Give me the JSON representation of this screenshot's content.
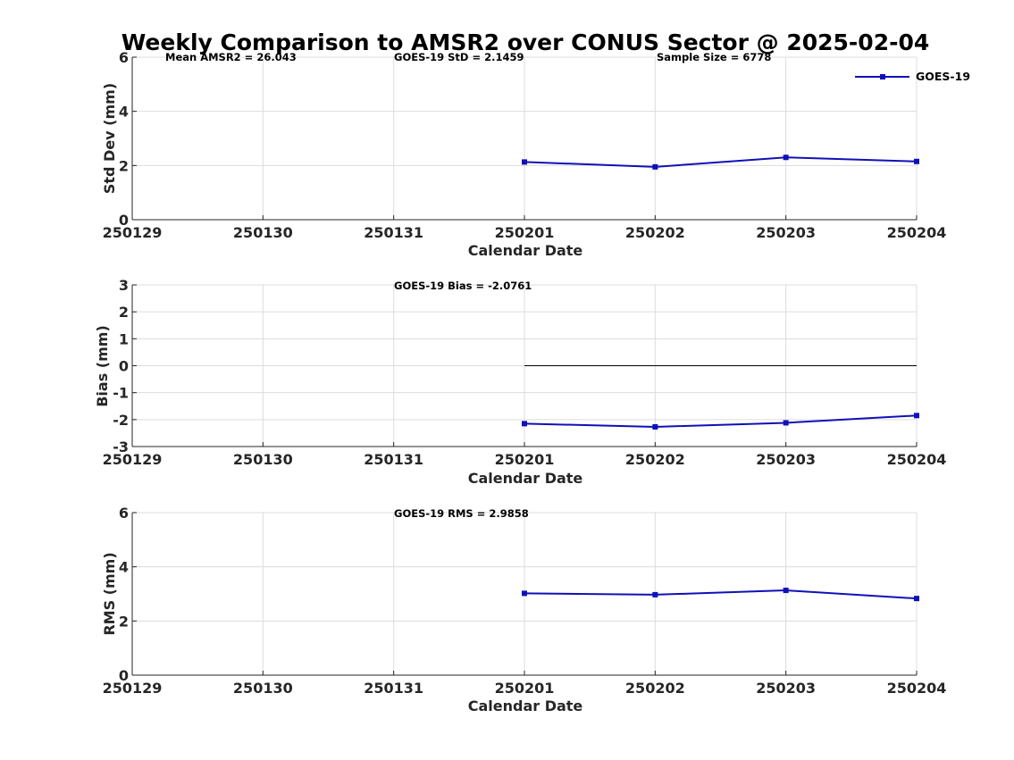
{
  "figure": {
    "title": "Weekly Comparison to AMSR2 over CONUS Sector @ 2025-02-04",
    "legend": {
      "label": "GOES-19",
      "color": "#1010b8"
    }
  },
  "chart_data": [
    {
      "type": "line",
      "title": "",
      "xlabel": "Calendar Date",
      "ylabel": "Std Dev (mm)",
      "categories": [
        "250129",
        "250130",
        "250131",
        "250201",
        "250202",
        "250203",
        "250204"
      ],
      "yticks": [
        "0",
        "2",
        "4",
        "6"
      ],
      "ylim": [
        0,
        6
      ],
      "grid": true,
      "legend": "top-right",
      "annotations": [
        "Mean AMSR2 = 26.043",
        "GOES-19 StD = 2.1459",
        "Sample Size = 6778"
      ],
      "series": [
        {
          "name": "GOES-19",
          "values": [
            null,
            null,
            null,
            2.13,
            1.95,
            2.3,
            2.15
          ]
        }
      ]
    },
    {
      "type": "line",
      "title": "",
      "xlabel": "Calendar Date",
      "ylabel": "Bias (mm)",
      "categories": [
        "250129",
        "250130",
        "250131",
        "250201",
        "250202",
        "250203",
        "250204"
      ],
      "yticks": [
        "-3",
        "-2",
        "-1",
        "0",
        "1",
        "2",
        "3"
      ],
      "ylim": [
        -3,
        3
      ],
      "grid": true,
      "reference_line": {
        "y": 0,
        "from": "250201",
        "to": "250204"
      },
      "annotations": [
        "GOES-19 Bias  = -2.0761"
      ],
      "series": [
        {
          "name": "GOES-19",
          "values": [
            null,
            null,
            null,
            -2.15,
            -2.27,
            -2.12,
            -1.85
          ]
        }
      ]
    },
    {
      "type": "line",
      "title": "",
      "xlabel": "Calendar Date",
      "ylabel": "RMS (mm)",
      "categories": [
        "250129",
        "250130",
        "250131",
        "250201",
        "250202",
        "250203",
        "250204"
      ],
      "yticks": [
        "0",
        "2",
        "4",
        "6"
      ],
      "ylim": [
        0,
        6
      ],
      "grid": true,
      "annotations": [
        "GOES-19 RMS = 2.9858"
      ],
      "series": [
        {
          "name": "GOES-19",
          "values": [
            null,
            null,
            null,
            3.02,
            2.97,
            3.13,
            2.83
          ]
        }
      ]
    }
  ]
}
